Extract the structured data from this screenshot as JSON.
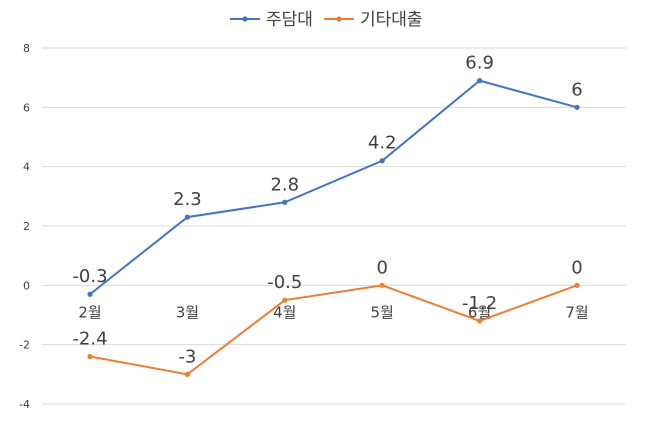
{
  "chart_data": {
    "type": "line",
    "categories": [
      "2월",
      "3월",
      "4월",
      "5월",
      "6월",
      "7월"
    ],
    "series": [
      {
        "name": "주담대",
        "values": [
          -0.3,
          2.3,
          2.8,
          4.2,
          6.9,
          6
        ],
        "labels": [
          "-0.3",
          "2.3",
          "2.8",
          "4.2",
          "6.9",
          "6"
        ],
        "color": "#4472C4"
      },
      {
        "name": "기타대출",
        "values": [
          -2.4,
          -3,
          -0.5,
          0,
          -1.2,
          0
        ],
        "labels": [
          "-2.4",
          "-3",
          "-0.5",
          "0",
          "-1.2",
          "0"
        ],
        "color": "#ED7D31"
      }
    ],
    "yticks": [
      "8",
      "6",
      "4",
      "2",
      "0",
      "-2",
      "-4"
    ],
    "ylim": [
      -4,
      8
    ],
    "grid": true,
    "legend": "top-center",
    "title": "",
    "xlabel": "",
    "ylabel": ""
  }
}
